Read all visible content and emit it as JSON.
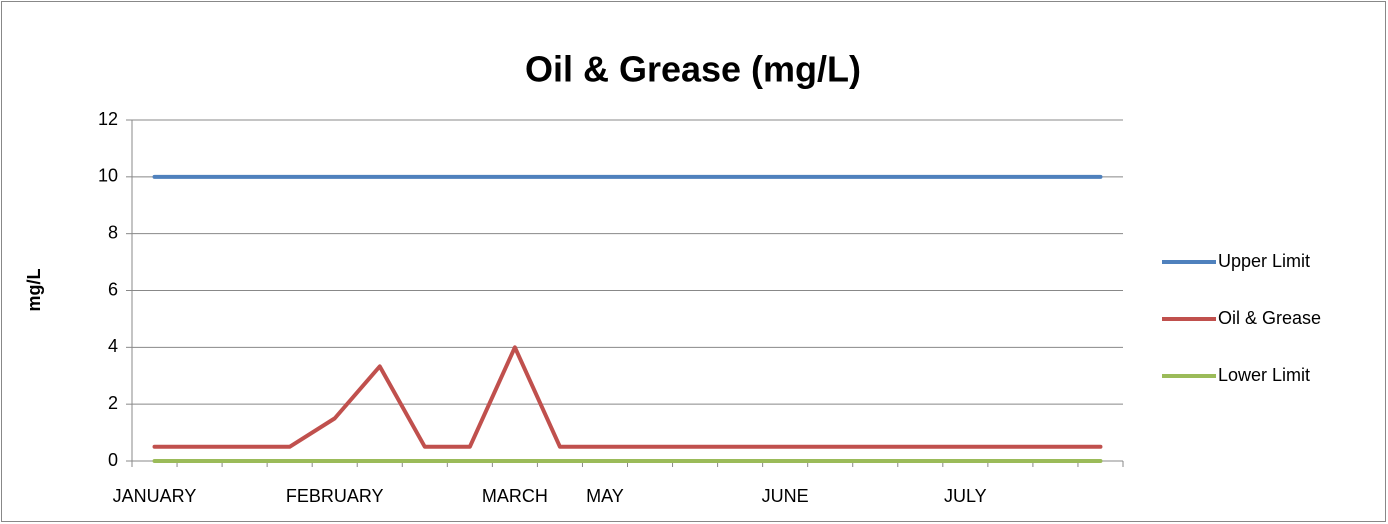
{
  "chart_data": {
    "type": "line",
    "title": "Oil & Grease (mg/L)",
    "y_label": "mg/L",
    "categories": [
      "JANUARY",
      null,
      null,
      null,
      "FEBRUARY",
      null,
      null,
      null,
      "MARCH",
      null,
      "MAY",
      null,
      null,
      null,
      "JUNE",
      null,
      null,
      null,
      "JULY",
      null,
      null,
      null
    ],
    "series": [
      {
        "name": "Upper Limit",
        "color": "#4f81bd",
        "values": [
          10,
          10,
          10,
          10,
          10,
          10,
          10,
          10,
          10,
          10,
          10,
          10,
          10,
          10,
          10,
          10,
          10,
          10,
          10,
          10,
          10,
          10
        ]
      },
      {
        "name": "Oil & Grease",
        "color": "#c0504d",
        "values": [
          0.5,
          0.5,
          0.5,
          0.5,
          1.5,
          3.33,
          0.5,
          0.5,
          4,
          0.5,
          0.5,
          0.5,
          0.5,
          0.5,
          0.5,
          0.5,
          0.5,
          0.5,
          0.5,
          0.5,
          0.5,
          0.5
        ]
      },
      {
        "name": "Lower Limit",
        "color": "#9bbb59",
        "values": [
          0,
          0,
          0,
          0,
          0,
          0,
          0,
          0,
          0,
          0,
          0,
          0,
          0,
          0,
          0,
          0,
          0,
          0,
          0,
          0,
          0,
          0
        ]
      }
    ],
    "ylim": [
      0,
      12
    ],
    "yticks": [
      0,
      2,
      4,
      6,
      8,
      10,
      12
    ],
    "grid": true,
    "legend": "right"
  }
}
